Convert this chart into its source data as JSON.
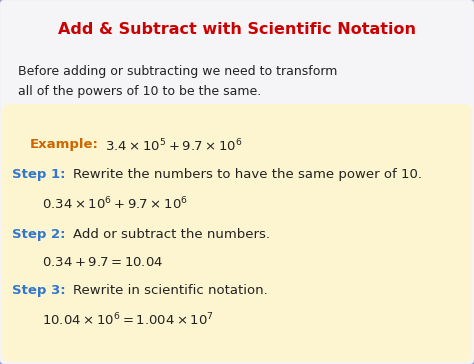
{
  "title": "Add & Subtract with Scientific Notation",
  "title_color": "#cc0000",
  "bg_color": "#f5f5f8",
  "outer_box_edgecolor": "#9999cc",
  "inner_box_color": "#fdf5d0",
  "intro_text_line1": "Before adding or subtracting we need to transform",
  "intro_text_line2": "all of the powers of 10 to be the same.",
  "intro_color": "#222222",
  "example_label": "Example:",
  "example_label_color": "#cc6600",
  "example_math": "$3.4 \\times 10^5 + 9.7 \\times 10^6$",
  "step1_label": "Step 1:",
  "step1_color": "#3377cc",
  "step1_text": "Rewrite the numbers to have the same power of 10.",
  "step1_math": "$0.34 \\times 10^6 + 9.7 \\times 10^6$",
  "step2_label": "Step 2:",
  "step2_color": "#3377cc",
  "step2_text": "Add or subtract the numbers.",
  "step2_math": "$0.34 + 9.7 = 10.04$",
  "step3_label": "Step 3:",
  "step3_color": "#3377cc",
  "step3_text": "Rewrite in scientific notation.",
  "step3_math": "$10.04 \\times 10^6 = 1.004 \\times 10^7$",
  "math_color": "#222222",
  "figwidth": 4.74,
  "figheight": 3.64,
  "dpi": 100
}
